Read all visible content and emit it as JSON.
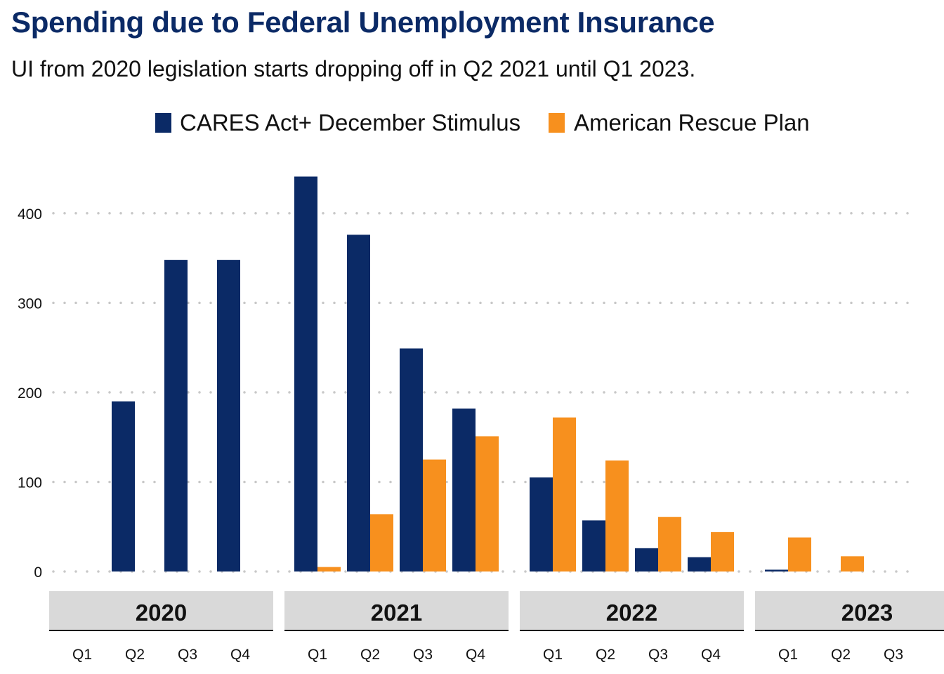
{
  "title": "Spending due to Federal Unemployment Insurance",
  "subtitle": "UI from 2020 legislation starts dropping off in Q2 2021 until Q1 2023.",
  "chart_data": {
    "type": "bar",
    "title": "Spending due to Federal Unemployment Insurance",
    "subtitle": "UI from 2020 legislation starts dropping off in Q2 2021 until Q1 2023.",
    "xlabel": "",
    "ylabel": "",
    "ylim": [
      0,
      450
    ],
    "yticks": [
      0,
      100,
      200,
      300,
      400
    ],
    "grid": true,
    "legend_position": "top",
    "panels": [
      {
        "label": "2020",
        "quarters": [
          "Q1",
          "Q2",
          "Q3",
          "Q4"
        ],
        "cares": [
          0,
          190,
          348,
          348
        ],
        "arp": [
          0,
          0,
          0,
          0
        ]
      },
      {
        "label": "2021",
        "quarters": [
          "Q1",
          "Q2",
          "Q3",
          "Q4"
        ],
        "cares": [
          441,
          376,
          249,
          182
        ],
        "arp": [
          5,
          64,
          125,
          151
        ]
      },
      {
        "label": "2022",
        "quarters": [
          "Q1",
          "Q2",
          "Q3",
          "Q4"
        ],
        "cares": [
          105,
          57,
          26,
          16
        ],
        "arp": [
          172,
          124,
          61,
          44
        ]
      },
      {
        "label": "2023",
        "quarters": [
          "Q1",
          "Q2",
          "Q3"
        ],
        "cares": [
          2,
          0,
          0
        ],
        "arp": [
          38,
          17,
          0
        ]
      }
    ],
    "series": [
      {
        "name": "CARES Act+ December Stimulus",
        "key": "cares",
        "color": "#0b2a66"
      },
      {
        "name": "American Rescue Plan",
        "key": "arp",
        "color": "#f7901e"
      }
    ],
    "strip_color": "#d9d9d9",
    "grid_color": "#c8c8c8"
  }
}
